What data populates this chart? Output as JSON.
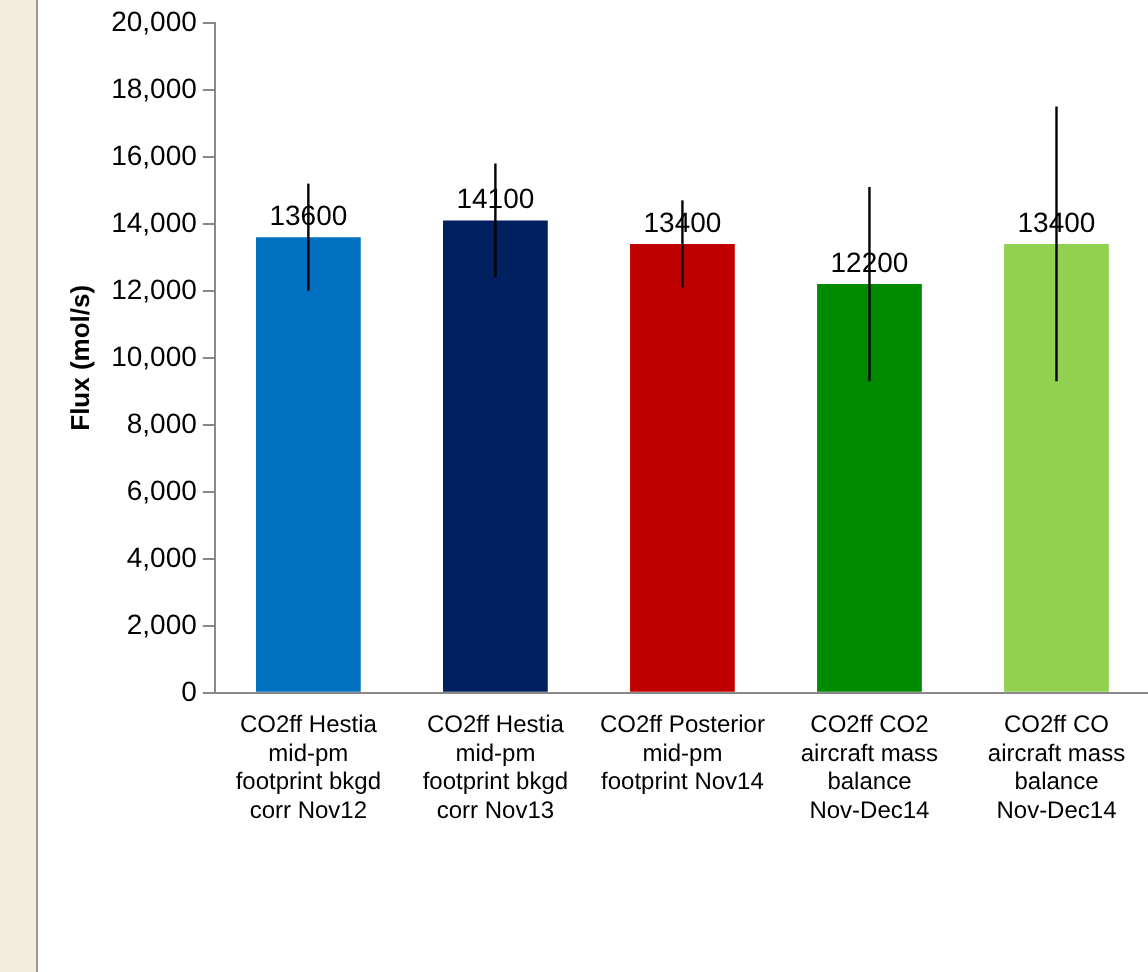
{
  "chart_data": {
    "type": "bar",
    "ylabel": "Flux (mol/s)",
    "categories": [
      "CO2ff Hestia mid-pm footprint bkgd corr Nov12",
      "CO2ff Hestia mid-pm footprint bkgd corr Nov13",
      "CO2ff Posterior mid-pm footprint Nov14",
      "CO2ff CO2 aircraft mass balance Nov-Dec14",
      "CO2ff CO aircraft mass balance Nov-Dec14"
    ],
    "values": [
      13600,
      14100,
      13400,
      12200,
      13400
    ],
    "colors": [
      "#0070c0",
      "#002060",
      "#c00000",
      "#008a00",
      "#92d050"
    ],
    "errors": [
      [
        12000,
        15200
      ],
      [
        12400,
        15800
      ],
      [
        12100,
        14700
      ],
      [
        9300,
        15100
      ],
      [
        9300,
        17500
      ]
    ],
    "data_labels": true,
    "ylim": [
      0,
      20000
    ],
    "yticks": [
      {
        "value": 0,
        "label": "0"
      },
      {
        "value": 2000,
        "label": "2,000"
      },
      {
        "value": 4000,
        "label": "4,000"
      },
      {
        "value": 6000,
        "label": "6,000"
      },
      {
        "value": 8000,
        "label": "8,000"
      },
      {
        "value": 10000,
        "label": "10,000"
      },
      {
        "value": 12000,
        "label": "12,000"
      },
      {
        "value": 14000,
        "label": "14,000"
      },
      {
        "value": 16000,
        "label": "16,000"
      },
      {
        "value": 18000,
        "label": "18,000"
      },
      {
        "value": 20000,
        "label": "20,000"
      }
    ],
    "grid": false,
    "legend": false
  }
}
